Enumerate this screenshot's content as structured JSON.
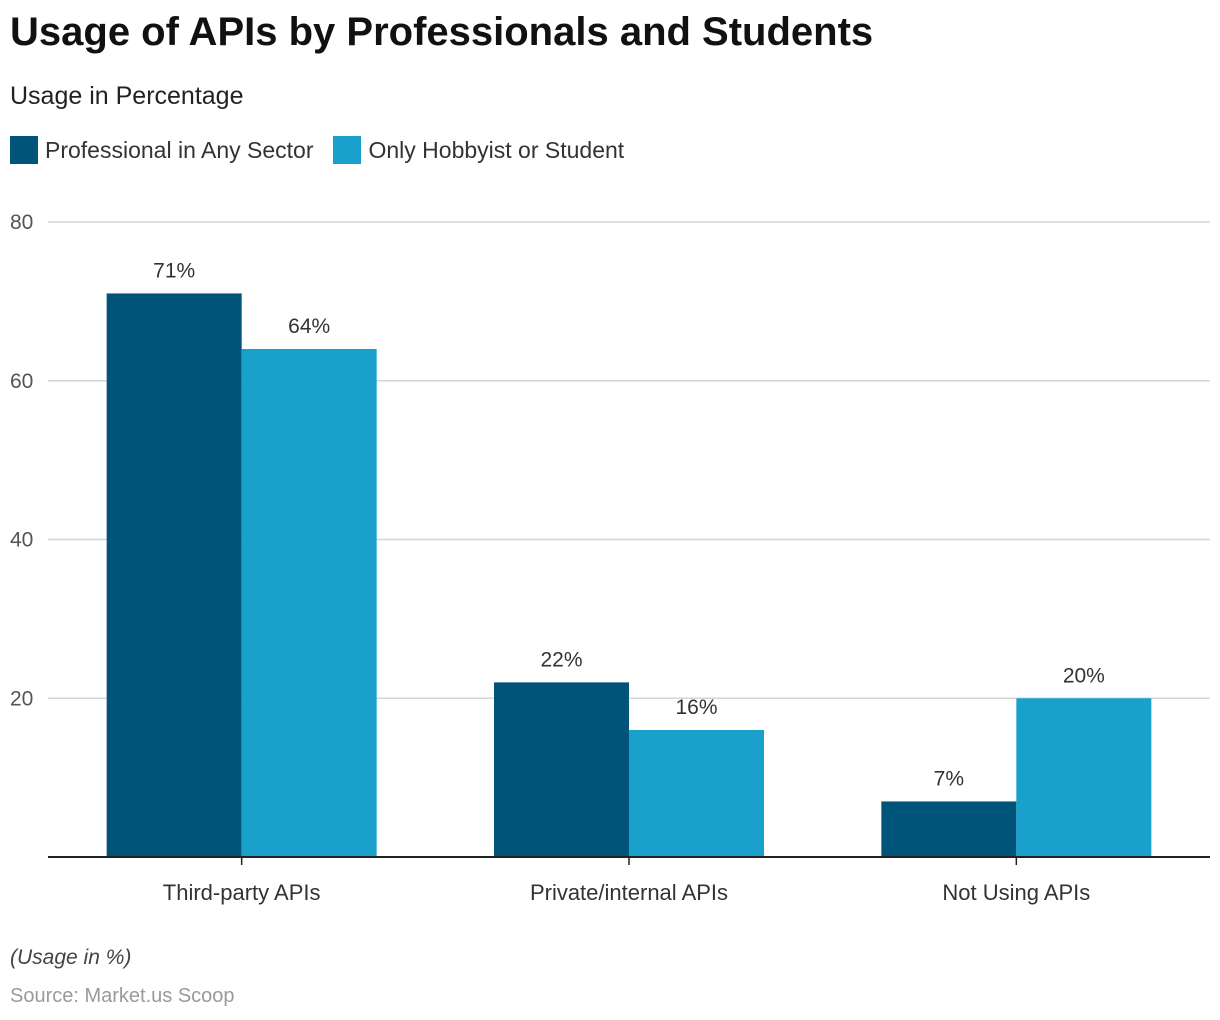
{
  "chart_data": {
    "type": "bar",
    "title": "Usage of APIs by Professionals and Students",
    "subtitle": "Usage in Percentage",
    "categories": [
      "Third-party APIs",
      "Private/internal APIs",
      "Not Using APIs"
    ],
    "series": [
      {
        "name": "Professional in Any Sector",
        "values": [
          71,
          22,
          7
        ],
        "labels": [
          "71%",
          "22%",
          "7%"
        ],
        "color": "#00547a"
      },
      {
        "name": "Only Hobbyist or Student",
        "values": [
          64,
          16,
          20
        ],
        "labels": [
          "64%",
          "16%",
          "20%"
        ],
        "color": "#19a1cc"
      }
    ],
    "ylim": [
      0,
      80
    ],
    "yticks": [
      20,
      40,
      60,
      80
    ],
    "ytick_labels": [
      "20",
      "40",
      "60",
      "80"
    ],
    "grid": true,
    "legend": "top-left",
    "note": "(Usage in %)",
    "source": "Source: Market.us Scoop"
  }
}
